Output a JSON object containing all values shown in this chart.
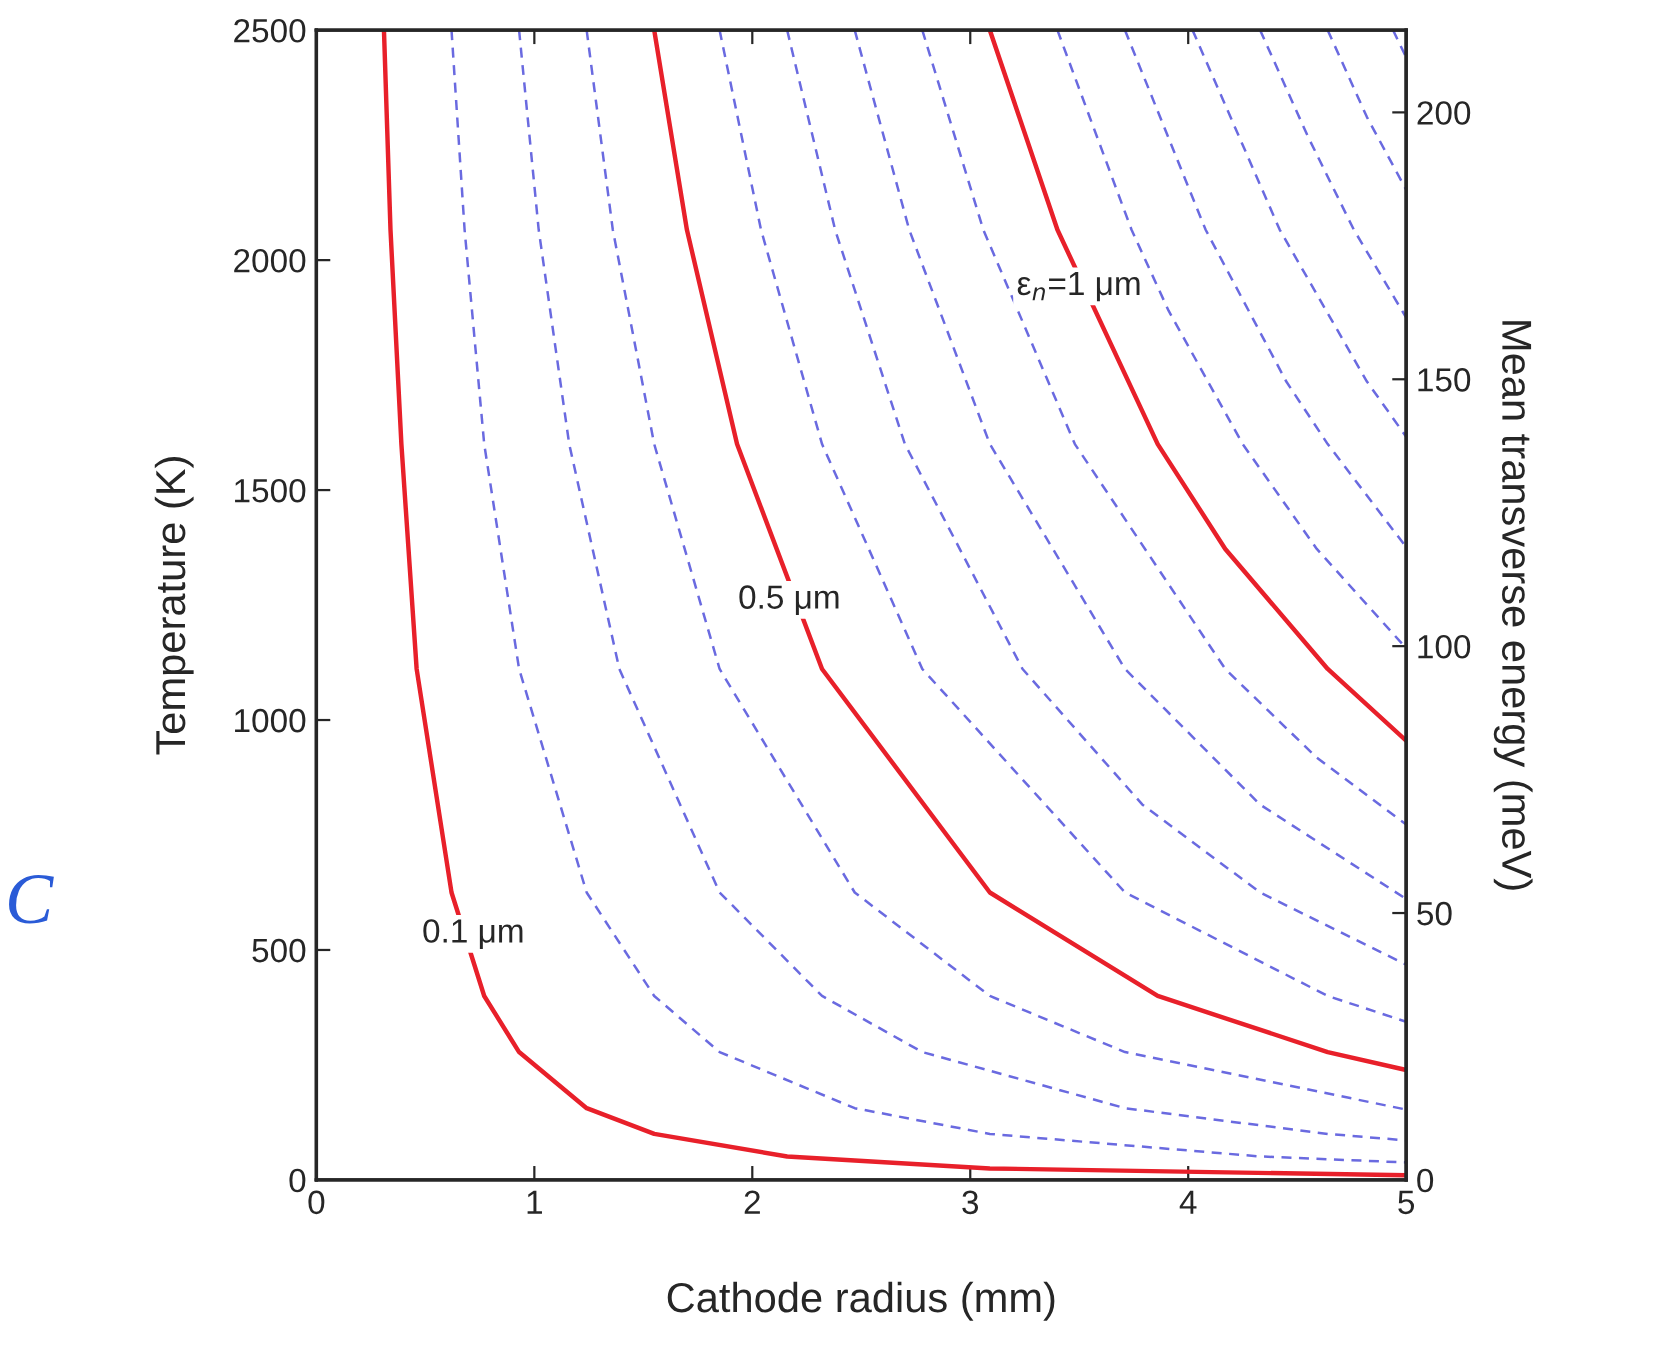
{
  "chart_data": {
    "type": "line",
    "xlabel": "Cathode radius (mm)",
    "ylabel": "Temperature (K)",
    "y2label": "Mean transverse energy (meV)",
    "xlim": [
      0,
      5
    ],
    "xticks": [
      0,
      1,
      2,
      3,
      4,
      5
    ],
    "ylim": [
      0,
      2500
    ],
    "yticks": [
      0,
      500,
      1000,
      1500,
      2000,
      2500
    ],
    "y2lim": [
      0,
      215.4
    ],
    "y2ticks": [
      0,
      50,
      100,
      150,
      200
    ],
    "grid": false,
    "marker": "none",
    "series": [
      {
        "color": "#e8202a",
        "line_style": "solid",
        "x": [
          0.31,
          0.34,
          0.39,
          0.46,
          0.62,
          0.77,
          0.93,
          1.24,
          1.55,
          2.16,
          3.09,
          5
        ],
        "values": [
          2500,
          2066,
          1600,
          1111,
          625,
          400,
          278,
          156,
          100,
          51,
          25,
          10
        ]
      },
      {
        "color": "#6a6ae0",
        "line_style": "dashed",
        "x": [
          0.62,
          0.68,
          0.77,
          0.93,
          1.24,
          1.55,
          1.85,
          2.47,
          3.09,
          4.33,
          5
        ],
        "values": [
          2500,
          2066,
          1600,
          1111,
          625,
          400,
          278,
          156,
          100,
          51,
          38
        ]
      },
      {
        "color": "#6a6ae0",
        "line_style": "dashed",
        "x": [
          0.93,
          1.02,
          1.16,
          1.39,
          1.85,
          2.32,
          2.78,
          3.71,
          4.64,
          5
        ],
        "values": [
          2500,
          2066,
          1600,
          1111,
          625,
          400,
          278,
          156,
          100,
          86
        ]
      },
      {
        "color": "#6a6ae0",
        "line_style": "dashed",
        "x": [
          1.24,
          1.36,
          1.55,
          1.85,
          2.47,
          3.09,
          3.71,
          5
        ],
        "values": [
          2500,
          2066,
          1600,
          1111,
          625,
          400,
          278,
          153
        ]
      },
      {
        "color": "#e8202a",
        "line_style": "solid",
        "x": [
          1.55,
          1.7,
          1.93,
          2.32,
          3.09,
          3.86,
          4.64,
          5
        ],
        "values": [
          2500,
          2066,
          1600,
          1111,
          625,
          400,
          278,
          239
        ]
      },
      {
        "color": "#6a6ae0",
        "line_style": "dashed",
        "x": [
          1.85,
          2.04,
          2.32,
          2.78,
          3.71,
          4.64,
          5
        ],
        "values": [
          2500,
          2066,
          1600,
          1111,
          625,
          400,
          344
        ]
      },
      {
        "color": "#6a6ae0",
        "line_style": "dashed",
        "x": [
          2.16,
          2.38,
          2.7,
          3.24,
          3.79,
          4.33,
          5
        ],
        "values": [
          2500,
          2066,
          1600,
          1111,
          816,
          625,
          468
        ]
      },
      {
        "color": "#6a6ae0",
        "line_style": "dashed",
        "x": [
          2.47,
          2.72,
          3.09,
          3.71,
          4.33,
          5
        ],
        "values": [
          2500,
          2066,
          1600,
          1111,
          816,
          611
        ]
      },
      {
        "color": "#6a6ae0",
        "line_style": "dashed",
        "x": [
          2.78,
          3.06,
          3.48,
          4.17,
          4.59,
          5
        ],
        "values": [
          2500,
          2066,
          1600,
          1111,
          918,
          773
        ]
      },
      {
        "color": "#e8202a",
        "line_style": "solid",
        "x": [
          3.09,
          3.4,
          3.86,
          4.17,
          4.64,
          5
        ],
        "values": [
          2500,
          2066,
          1600,
          1372,
          1111,
          955
        ]
      },
      {
        "color": "#6a6ae0",
        "line_style": "dashed",
        "x": [
          3.4,
          3.74,
          3.91,
          4.25,
          4.59,
          5
        ],
        "values": [
          2500,
          2066,
          1890,
          1600,
          1372,
          1156
        ]
      },
      {
        "color": "#6a6ae0",
        "line_style": "dashed",
        "x": [
          3.71,
          4.08,
          4.45,
          4.64,
          5
        ],
        "values": [
          2500,
          2066,
          1736,
          1600,
          1376
        ]
      },
      {
        "color": "#6a6ae0",
        "line_style": "dashed",
        "x": [
          4.02,
          4.42,
          4.82,
          5
        ],
        "values": [
          2500,
          2066,
          1736,
          1616
        ]
      },
      {
        "color": "#6a6ae0",
        "line_style": "dashed",
        "x": [
          4.33,
          4.55,
          4.76,
          5
        ],
        "values": [
          2500,
          2268,
          2066,
          1875
        ]
      },
      {
        "color": "#6a6ae0",
        "line_style": "dashed",
        "x": [
          4.64,
          4.82,
          5
        ],
        "values": [
          2500,
          2311,
          2153
        ]
      },
      {
        "color": "#6a6ae0",
        "line_style": "dashed",
        "x": [
          4.94,
          5
        ],
        "values": [
          2500,
          2441
        ]
      }
    ],
    "annotations": [
      {
        "text": "0.1 μm",
        "x": 0.72,
        "y": 535
      },
      {
        "text": "0.5 μm",
        "x": 2.17,
        "y": 1261
      },
      {
        "text": "ε$_{n}$=1 μm",
        "x": 3.5,
        "y": 1943
      },
      "C"
    ]
  }
}
